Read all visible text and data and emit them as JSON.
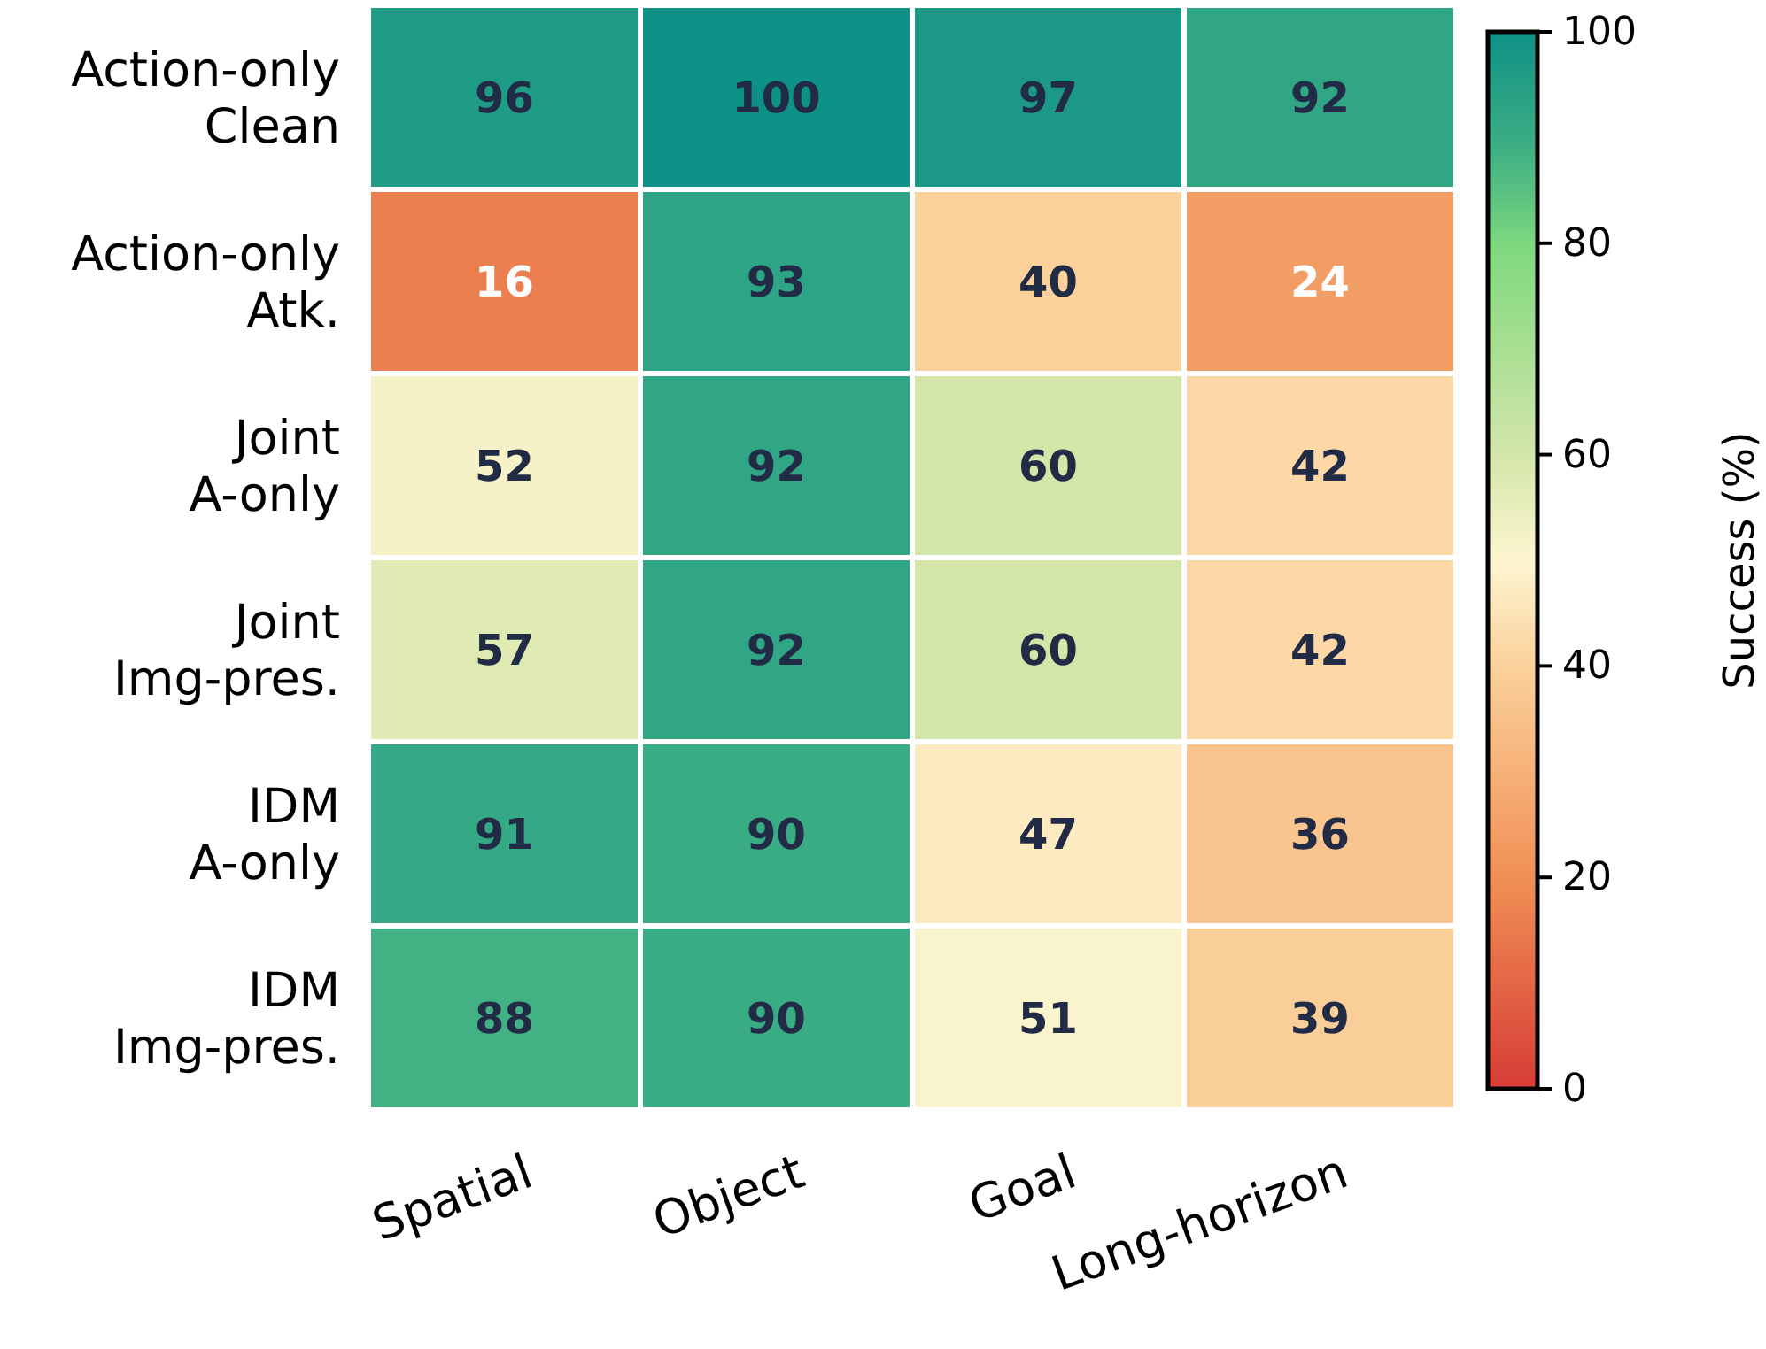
{
  "chart_data": {
    "type": "heatmap",
    "categories": [
      "Spatial",
      "Object",
      "Goal",
      "Long-horizon"
    ],
    "y_categories": [
      "Action-only\nClean",
      "Action-only\nAtk.",
      "Joint\nA-only",
      "Joint\nImg-pres.",
      "IDM\nA-only",
      "IDM\nImg-pres."
    ],
    "cells": [
      [
        96,
        100,
        97,
        92
      ],
      [
        16,
        93,
        40,
        24
      ],
      [
        52,
        92,
        60,
        42
      ],
      [
        57,
        92,
        60,
        42
      ],
      [
        91,
        90,
        47,
        36
      ],
      [
        88,
        90,
        51,
        39
      ]
    ],
    "data_labels": true,
    "clabel": "Success (%)",
    "clim": [
      0,
      100
    ],
    "cticks": [
      0,
      20,
      40,
      60,
      80,
      100
    ]
  }
}
